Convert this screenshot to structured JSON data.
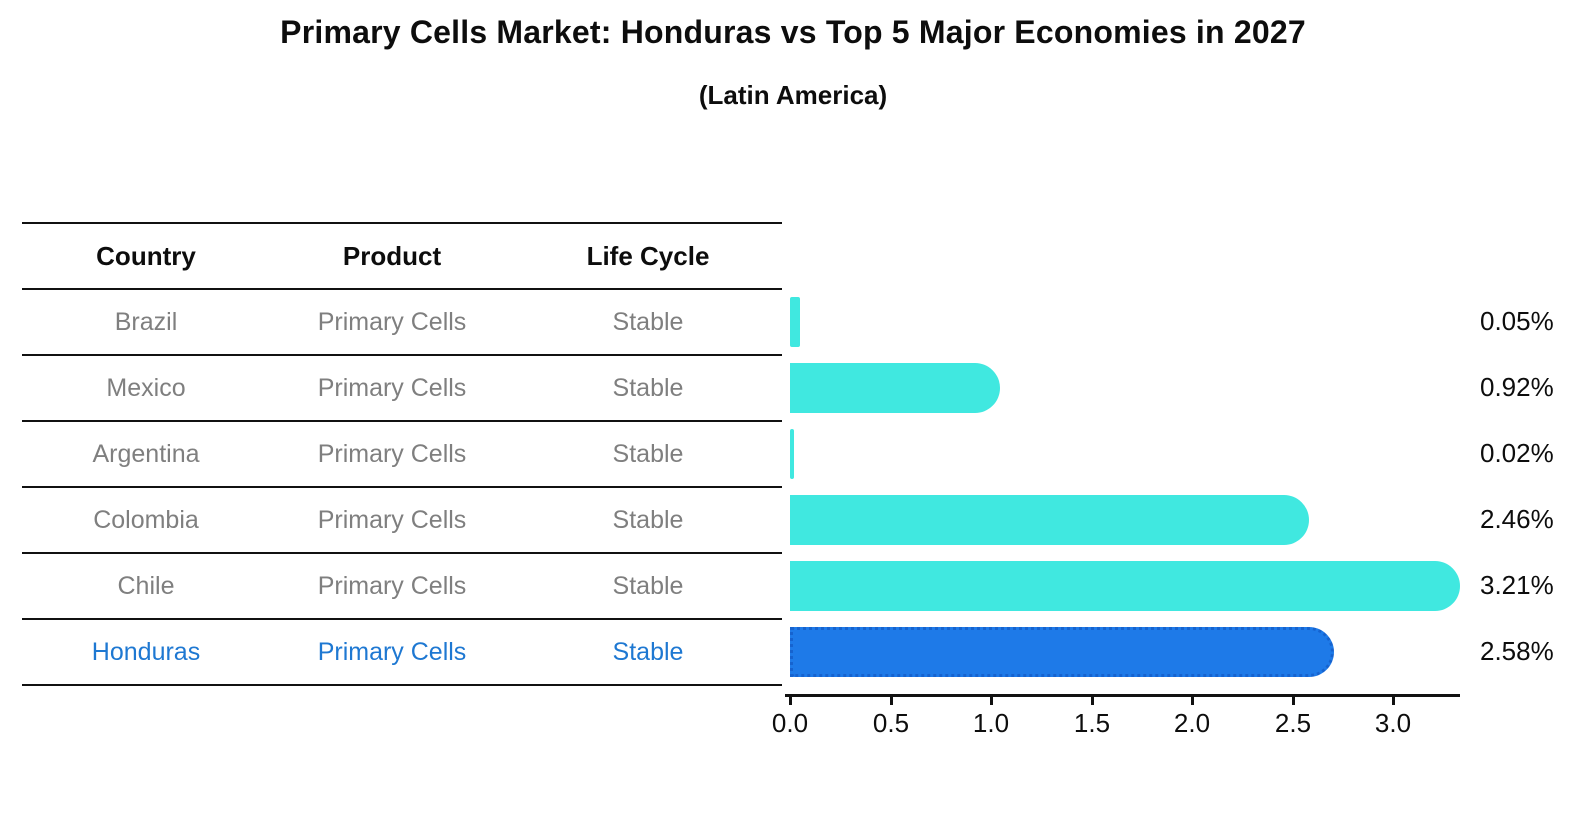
{
  "title": "Primary Cells Market: Honduras vs Top 5 Major Economies in 2027",
  "subtitle": "(Latin America)",
  "colors": {
    "bar": "#40e8e0",
    "highlight_bar": "#1e7ae8",
    "highlight_border": "#1663cf",
    "highlight_text": "#1e78d2",
    "row_text": "#7f7f7f",
    "header_text": "#0d0d0d"
  },
  "table": {
    "headers": [
      "Country",
      "Product",
      "Life Cycle"
    ],
    "rows": [
      {
        "country": "Brazil",
        "product": "Primary Cells",
        "life_cycle": "Stable"
      },
      {
        "country": "Mexico",
        "product": "Primary Cells",
        "life_cycle": "Stable"
      },
      {
        "country": "Argentina",
        "product": "Primary Cells",
        "life_cycle": "Stable"
      },
      {
        "country": "Colombia",
        "product": "Primary Cells",
        "life_cycle": "Stable"
      },
      {
        "country": "Chile",
        "product": "Primary Cells",
        "life_cycle": "Stable"
      },
      {
        "country": "Honduras",
        "product": "Primary Cells",
        "life_cycle": "Stable"
      }
    ],
    "highlight_row": "Honduras"
  },
  "chart_data": {
    "type": "bar",
    "orientation": "horizontal",
    "title": "Primary Cells Market: Honduras vs Top 5 Major Economies in 2027",
    "subtitle": "(Latin America)",
    "categories": [
      "Brazil",
      "Mexico",
      "Argentina",
      "Colombia",
      "Chile",
      "Honduras"
    ],
    "values": [
      0.05,
      0.92,
      0.02,
      2.46,
      3.21,
      2.58
    ],
    "labels": [
      "0.05%",
      "0.92%",
      "0.02%",
      "2.46%",
      "3.21%",
      "2.58%"
    ],
    "highlight_index": 5,
    "x_ticks": [
      "0.0",
      "0.5",
      "1.0",
      "1.5",
      "2.0",
      "2.5",
      "3.0"
    ],
    "x_tick_values": [
      0,
      0.5,
      1,
      1.5,
      2,
      2.5,
      3
    ],
    "xlim": [
      0,
      3.35
    ],
    "grid": false,
    "legend": false,
    "unit": "percent"
  }
}
